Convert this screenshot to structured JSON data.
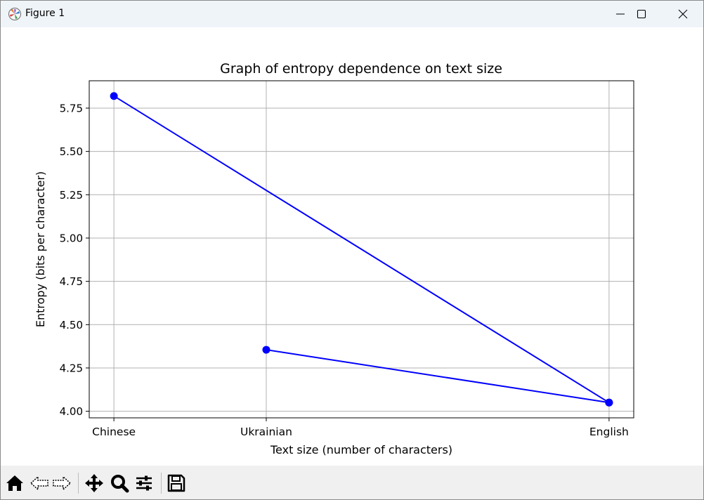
{
  "window": {
    "title": "Figure 1"
  },
  "toolbar": {
    "tools": [
      "home-icon",
      "back-icon",
      "forward-icon",
      "pan-icon",
      "zoom-icon",
      "configure-subplots-icon",
      "save-icon"
    ]
  },
  "colors": {
    "line": "#0000ff",
    "grid": "#b0b0b0",
    "titlebar": "#eff4f9",
    "toolbar": "#f0f0f0"
  },
  "chart_data": {
    "type": "line",
    "title": "Graph of entropy dependence on text size",
    "xlabel": "Text size (number of characters)",
    "ylabel": "Entropy (bits per character)",
    "x": [
      "Chinese",
      "English",
      "Ukrainian",
      "English"
    ],
    "xticks": [
      "Chinese",
      "Ukrainian",
      "English"
    ],
    "xtick_positions": [
      0,
      1,
      3.25
    ],
    "x_positions": [
      0,
      3.25,
      1,
      3.25
    ],
    "series": [
      {
        "values": [
          5.82,
          4.05,
          4.355,
          4.05
        ],
        "marker": "circle",
        "color": "#0000ff"
      }
    ],
    "yticks": [
      "4.00",
      "4.25",
      "4.50",
      "4.75",
      "5.00",
      "5.25",
      "5.50",
      "5.75"
    ],
    "ytick_values": [
      4.0,
      4.25,
      4.5,
      4.75,
      5.0,
      5.25,
      5.5,
      5.75
    ],
    "ylim": [
      3.962,
      5.908
    ],
    "xlim": [
      -0.162,
      3.412
    ],
    "grid": true
  }
}
